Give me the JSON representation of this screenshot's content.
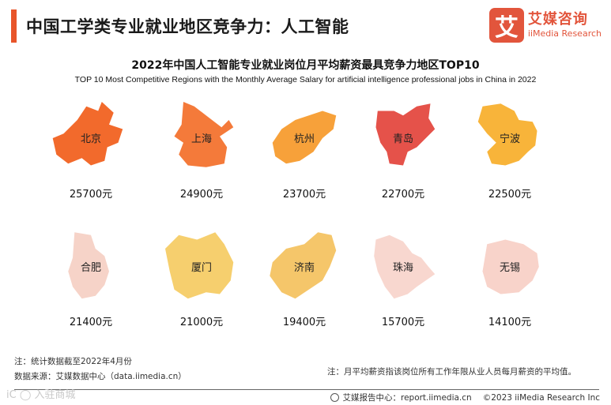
{
  "header": {
    "title": "中国工学类专业就业地区竞争力：人工智能",
    "logo_mark": "艾",
    "logo_cn": "艾媒咨询",
    "logo_en": "iiMedia Research"
  },
  "chart_data": {
    "type": "map-grid",
    "title": "2022年中国人工智能专业就业岗位月平均薪资最具竞争力地区TOP10",
    "subtitle": "TOP 10 Most Competitive Regions with the Monthly Average Salary  for artificial intelligence professional jobs in China in 2022",
    "unit": "元",
    "items": [
      {
        "region": "北京",
        "value": 25700,
        "color": "#f26a2c"
      },
      {
        "region": "上海",
        "value": 24900,
        "color": "#f47a3a"
      },
      {
        "region": "杭州",
        "value": 23700,
        "color": "#f7a13a"
      },
      {
        "region": "青岛",
        "value": 22700,
        "color": "#e5524a"
      },
      {
        "region": "宁波",
        "value": 22500,
        "color": "#f8b43a"
      },
      {
        "region": "合肥",
        "value": 21400,
        "color": "#f6d3c8"
      },
      {
        "region": "厦门",
        "value": 21000,
        "color": "#f6cf6e"
      },
      {
        "region": "济南",
        "value": 19400,
        "color": "#f5c66a"
      },
      {
        "region": "珠海",
        "value": 15700,
        "color": "#f8d7cf"
      },
      {
        "region": "无锡",
        "value": 14100,
        "color": "#f8d3ca"
      }
    ]
  },
  "footer": {
    "note1": "注：统计数据截至2022年4月份",
    "source": "数据来源：艾媒数据中心（data.iimedia.cn）",
    "note2": "注：月平均薪资指该岗位所有工作年限从业人员每月薪资的平均值。",
    "report_center": "艾媒报告中心：report.iimedia.cn",
    "copyright": "©2023  iiMedia Research  Inc",
    "watermark": "iC ◯ 入驻商城"
  }
}
